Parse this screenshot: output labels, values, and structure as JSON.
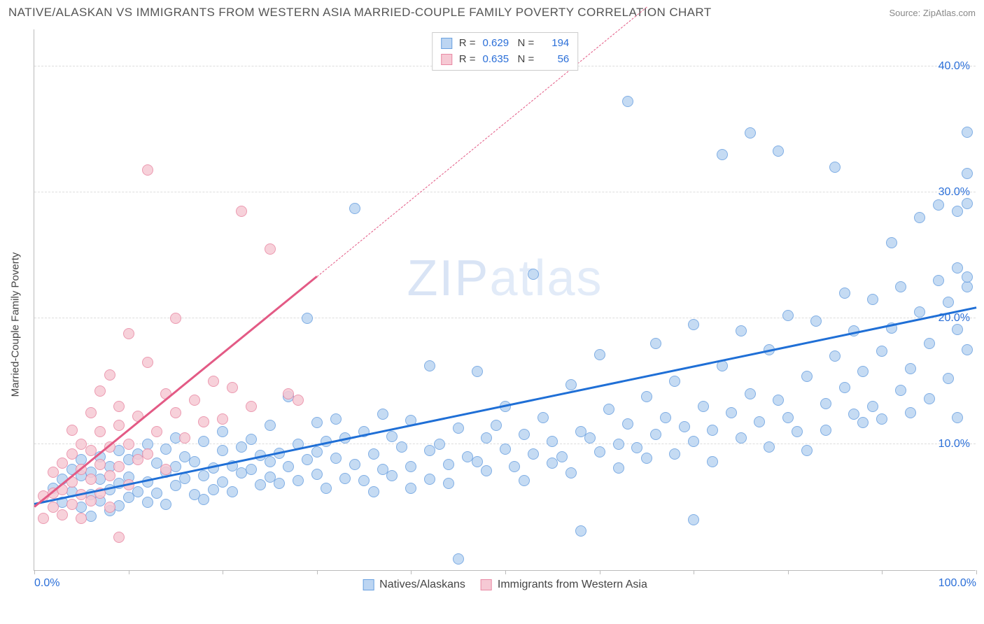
{
  "title": "NATIVE/ALASKAN VS IMMIGRANTS FROM WESTERN ASIA MARRIED-COUPLE FAMILY POVERTY CORRELATION CHART",
  "source": "Source: ZipAtlas.com",
  "watermark_a": "ZIP",
  "watermark_b": "atlas",
  "yaxis_label": "Married-Couple Family Poverty",
  "chart": {
    "type": "scatter",
    "xlim": [
      0,
      100
    ],
    "ylim": [
      0,
      43
    ],
    "xticks": [
      0,
      10,
      20,
      30,
      40,
      50,
      60,
      70,
      80,
      90,
      100
    ],
    "xtick_labels": {
      "0": "0.0%",
      "100": "100.0%"
    },
    "yticks": [
      10,
      20,
      30,
      40
    ],
    "ytick_labels": {
      "10": "10.0%",
      "20": "20.0%",
      "30": "30.0%",
      "40": "40.0%"
    },
    "background_color": "#ffffff",
    "grid_color": "#dddddd",
    "point_radius": 8,
    "point_border_width": 1.2,
    "series": [
      {
        "name": "Natives/Alaskans",
        "fill": "#bcd5f2",
        "stroke": "#6aa1e0",
        "R": "0.629",
        "N": "194",
        "trend": {
          "x1": 0,
          "y1": 5.2,
          "x2": 100,
          "y2": 20.8,
          "color": "#1f6fd6",
          "dash_after_x": 100
        },
        "points": [
          [
            2,
            6.5
          ],
          [
            3,
            7.2
          ],
          [
            3,
            5.4
          ],
          [
            4,
            6.2
          ],
          [
            4,
            8.0
          ],
          [
            5,
            5.0
          ],
          [
            5,
            7.5
          ],
          [
            5,
            8.8
          ],
          [
            6,
            6.0
          ],
          [
            6,
            4.3
          ],
          [
            6,
            7.8
          ],
          [
            7,
            7.2
          ],
          [
            7,
            5.5
          ],
          [
            7,
            9.0
          ],
          [
            8,
            6.4
          ],
          [
            8,
            8.2
          ],
          [
            8,
            4.7
          ],
          [
            9,
            6.9
          ],
          [
            9,
            9.5
          ],
          [
            9,
            5.1
          ],
          [
            10,
            7.4
          ],
          [
            10,
            8.8
          ],
          [
            10,
            5.8
          ],
          [
            11,
            6.2
          ],
          [
            11,
            9.2
          ],
          [
            12,
            7.0
          ],
          [
            12,
            5.4
          ],
          [
            12,
            10.0
          ],
          [
            13,
            8.5
          ],
          [
            13,
            6.1
          ],
          [
            14,
            7.8
          ],
          [
            14,
            9.6
          ],
          [
            14,
            5.2
          ],
          [
            15,
            8.2
          ],
          [
            15,
            6.7
          ],
          [
            15,
            10.5
          ],
          [
            16,
            7.3
          ],
          [
            16,
            9.0
          ],
          [
            17,
            6.0
          ],
          [
            17,
            8.6
          ],
          [
            18,
            7.5
          ],
          [
            18,
            10.2
          ],
          [
            18,
            5.6
          ],
          [
            19,
            8.1
          ],
          [
            19,
            6.4
          ],
          [
            20,
            9.5
          ],
          [
            20,
            7.0
          ],
          [
            20,
            11.0
          ],
          [
            21,
            8.3
          ],
          [
            21,
            6.2
          ],
          [
            22,
            9.8
          ],
          [
            22,
            7.7
          ],
          [
            23,
            8.0
          ],
          [
            23,
            10.4
          ],
          [
            24,
            6.8
          ],
          [
            24,
            9.1
          ],
          [
            25,
            7.4
          ],
          [
            25,
            11.5
          ],
          [
            25,
            8.6
          ],
          [
            26,
            9.3
          ],
          [
            26,
            6.9
          ],
          [
            27,
            13.8
          ],
          [
            27,
            8.2
          ],
          [
            28,
            10.0
          ],
          [
            28,
            7.1
          ],
          [
            29,
            20.0
          ],
          [
            29,
            8.8
          ],
          [
            30,
            9.4
          ],
          [
            30,
            7.6
          ],
          [
            30,
            11.7
          ],
          [
            31,
            10.2
          ],
          [
            31,
            6.5
          ],
          [
            32,
            8.9
          ],
          [
            32,
            12.0
          ],
          [
            33,
            7.3
          ],
          [
            33,
            10.5
          ],
          [
            34,
            28.7
          ],
          [
            34,
            8.4
          ],
          [
            35,
            11.0
          ],
          [
            35,
            7.1
          ],
          [
            36,
            9.2
          ],
          [
            36,
            6.2
          ],
          [
            37,
            8.0
          ],
          [
            37,
            12.4
          ],
          [
            38,
            10.6
          ],
          [
            38,
            7.5
          ],
          [
            39,
            9.8
          ],
          [
            40,
            8.2
          ],
          [
            40,
            6.5
          ],
          [
            40,
            11.9
          ],
          [
            42,
            9.5
          ],
          [
            42,
            16.2
          ],
          [
            42,
            7.2
          ],
          [
            43,
            10.0
          ],
          [
            44,
            8.4
          ],
          [
            44,
            6.9
          ],
          [
            45,
            11.3
          ],
          [
            45,
            0.9
          ],
          [
            46,
            9.0
          ],
          [
            47,
            8.6
          ],
          [
            47,
            15.8
          ],
          [
            48,
            10.5
          ],
          [
            48,
            7.9
          ],
          [
            49,
            11.5
          ],
          [
            50,
            9.6
          ],
          [
            50,
            13.0
          ],
          [
            51,
            8.2
          ],
          [
            52,
            10.8
          ],
          [
            52,
            7.1
          ],
          [
            53,
            23.5
          ],
          [
            53,
            9.2
          ],
          [
            54,
            12.1
          ],
          [
            55,
            10.2
          ],
          [
            55,
            8.5
          ],
          [
            56,
            9.0
          ],
          [
            57,
            14.7
          ],
          [
            57,
            7.7
          ],
          [
            58,
            11.0
          ],
          [
            58,
            3.1
          ],
          [
            59,
            10.5
          ],
          [
            60,
            9.4
          ],
          [
            60,
            17.1
          ],
          [
            61,
            12.8
          ],
          [
            62,
            10.0
          ],
          [
            62,
            8.1
          ],
          [
            63,
            37.2
          ],
          [
            63,
            11.6
          ],
          [
            64,
            9.7
          ],
          [
            65,
            8.9
          ],
          [
            65,
            13.8
          ],
          [
            66,
            10.8
          ],
          [
            66,
            18.0
          ],
          [
            67,
            12.1
          ],
          [
            68,
            9.2
          ],
          [
            68,
            15.0
          ],
          [
            69,
            11.4
          ],
          [
            70,
            10.2
          ],
          [
            70,
            19.5
          ],
          [
            70,
            4.0
          ],
          [
            71,
            13.0
          ],
          [
            72,
            11.1
          ],
          [
            72,
            8.6
          ],
          [
            73,
            33.0
          ],
          [
            73,
            16.2
          ],
          [
            74,
            12.5
          ],
          [
            75,
            10.5
          ],
          [
            75,
            19.0
          ],
          [
            76,
            14.0
          ],
          [
            76,
            34.7
          ],
          [
            77,
            11.8
          ],
          [
            78,
            9.8
          ],
          [
            78,
            17.5
          ],
          [
            79,
            13.5
          ],
          [
            79,
            33.3
          ],
          [
            80,
            12.1
          ],
          [
            80,
            20.2
          ],
          [
            81,
            11.0
          ],
          [
            82,
            15.4
          ],
          [
            82,
            9.5
          ],
          [
            83,
            19.8
          ],
          [
            84,
            13.2
          ],
          [
            84,
            11.1
          ],
          [
            85,
            17.0
          ],
          [
            85,
            32.0
          ],
          [
            86,
            14.5
          ],
          [
            86,
            22.0
          ],
          [
            87,
            12.4
          ],
          [
            87,
            19.0
          ],
          [
            88,
            15.8
          ],
          [
            88,
            11.7
          ],
          [
            89,
            21.5
          ],
          [
            89,
            13.0
          ],
          [
            90,
            17.4
          ],
          [
            90,
            12.0
          ],
          [
            91,
            26.0
          ],
          [
            91,
            19.2
          ],
          [
            92,
            14.3
          ],
          [
            92,
            22.5
          ],
          [
            93,
            16.0
          ],
          [
            93,
            12.5
          ],
          [
            94,
            20.5
          ],
          [
            94,
            28.0
          ],
          [
            95,
            18.0
          ],
          [
            95,
            13.6
          ],
          [
            96,
            23.0
          ],
          [
            96,
            29.0
          ],
          [
            97,
            21.3
          ],
          [
            97,
            15.2
          ],
          [
            98,
            28.5
          ],
          [
            98,
            19.1
          ],
          [
            98,
            24.0
          ],
          [
            98,
            12.1
          ],
          [
            99,
            34.8
          ],
          [
            99,
            22.5
          ],
          [
            99,
            17.5
          ],
          [
            99,
            31.5
          ],
          [
            99,
            29.1
          ],
          [
            99,
            23.3
          ]
        ]
      },
      {
        "name": "Immigrants from Western Asia",
        "fill": "#f6c9d4",
        "stroke": "#e989a4",
        "R": "0.635",
        "N": "56",
        "trend": {
          "x1": 0,
          "y1": 5.0,
          "x2": 30,
          "y2": 23.3,
          "color": "#e35a85",
          "dash_after_x": 30,
          "dash_x2": 65,
          "dash_y2": 44.7
        },
        "points": [
          [
            1,
            5.9
          ],
          [
            1,
            4.1
          ],
          [
            2,
            6.1
          ],
          [
            2,
            7.8
          ],
          [
            2,
            5.0
          ],
          [
            3,
            8.5
          ],
          [
            3,
            6.4
          ],
          [
            3,
            4.4
          ],
          [
            4,
            9.2
          ],
          [
            4,
            7.0
          ],
          [
            4,
            5.2
          ],
          [
            4,
            11.1
          ],
          [
            5,
            8.0
          ],
          [
            5,
            6.0
          ],
          [
            5,
            10.0
          ],
          [
            5,
            4.1
          ],
          [
            6,
            9.5
          ],
          [
            6,
            7.2
          ],
          [
            6,
            12.5
          ],
          [
            6,
            5.5
          ],
          [
            7,
            8.4
          ],
          [
            7,
            11.0
          ],
          [
            7,
            6.1
          ],
          [
            7,
            14.2
          ],
          [
            8,
            9.8
          ],
          [
            8,
            7.5
          ],
          [
            8,
            15.5
          ],
          [
            8,
            5.0
          ],
          [
            9,
            11.5
          ],
          [
            9,
            8.2
          ],
          [
            9,
            2.6
          ],
          [
            9,
            13.0
          ],
          [
            10,
            10.0
          ],
          [
            10,
            6.8
          ],
          [
            10,
            18.8
          ],
          [
            11,
            12.2
          ],
          [
            11,
            8.8
          ],
          [
            12,
            16.5
          ],
          [
            12,
            9.2
          ],
          [
            12,
            31.8
          ],
          [
            13,
            11.0
          ],
          [
            14,
            14.0
          ],
          [
            14,
            8.0
          ],
          [
            15,
            12.5
          ],
          [
            15,
            20.0
          ],
          [
            16,
            10.5
          ],
          [
            17,
            13.5
          ],
          [
            18,
            11.8
          ],
          [
            19,
            15.0
          ],
          [
            20,
            12.0
          ],
          [
            21,
            14.5
          ],
          [
            22,
            28.5
          ],
          [
            23,
            13.0
          ],
          [
            25,
            25.5
          ],
          [
            27,
            14.0
          ],
          [
            28,
            13.5
          ]
        ]
      }
    ]
  },
  "legend_bottom": [
    {
      "label": "Natives/Alaskans",
      "fill": "#bcd5f2",
      "stroke": "#6aa1e0"
    },
    {
      "label": "Immigrants from Western Asia",
      "fill": "#f6c9d4",
      "stroke": "#e989a4"
    }
  ]
}
